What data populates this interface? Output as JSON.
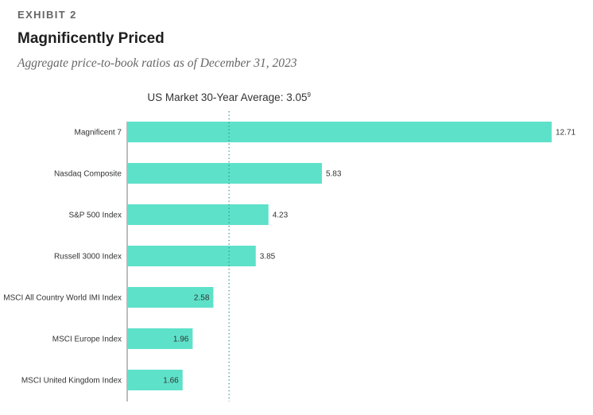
{
  "exhibit": "EXHIBIT 2",
  "chart_data": {
    "type": "bar",
    "orientation": "horizontal",
    "title": "Magnificently Priced",
    "subtitle": "Aggregate price-to-book ratios as of December 31, 2023",
    "categories": [
      "Magnificent 7",
      "Nasdaq Composite",
      "S&P 500 Index",
      "Russell 3000 Index",
      "MSCI All Country World IMI Index",
      "MSCI Europe Index",
      "MSCI United Kingdom Index"
    ],
    "values": [
      12.71,
      5.83,
      4.23,
      3.85,
      2.58,
      1.96,
      1.66
    ],
    "value_labels": [
      "12.71",
      "5.83",
      "4.23",
      "3.85",
      "2.58",
      "1.96",
      "1.66"
    ],
    "reference_line": {
      "label": "US Market 30-Year Average: 3.05",
      "superscript": "9",
      "value": 3.05,
      "style": "dotted"
    },
    "xlim": [
      0,
      12.71
    ],
    "grid": false,
    "bar_color": "#5ee1c9",
    "reference_line_color": "#2a8ba0"
  }
}
